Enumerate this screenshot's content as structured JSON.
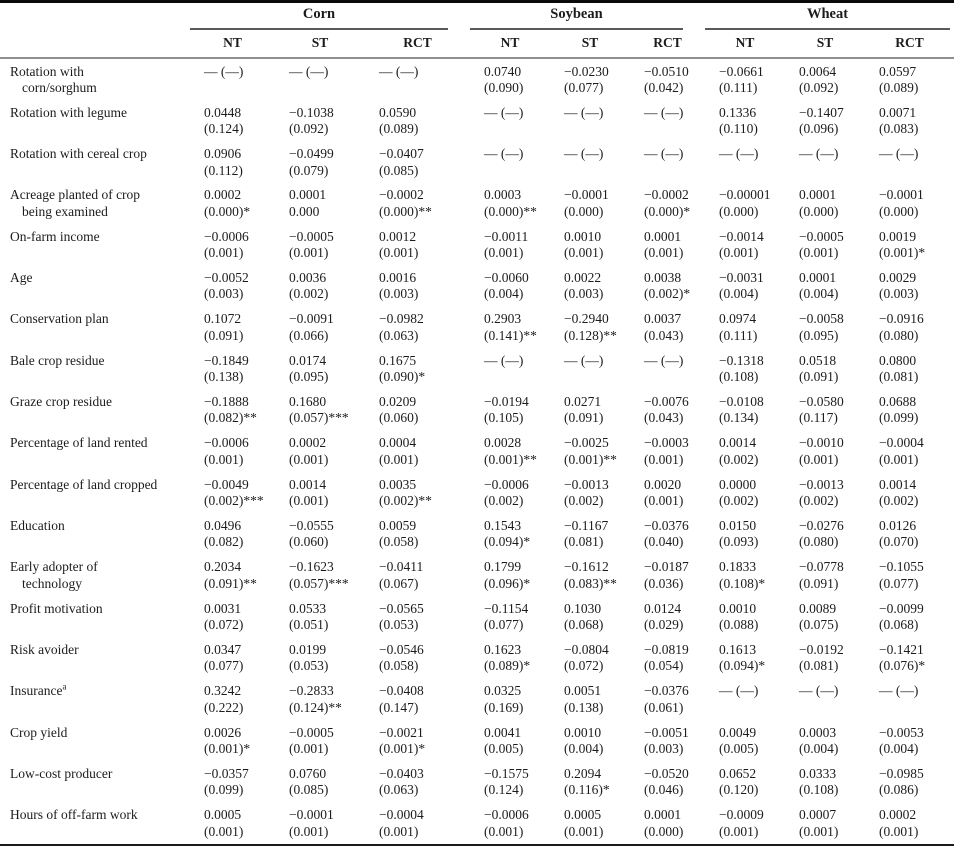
{
  "table": {
    "col_groups": [
      {
        "label": "Corn"
      },
      {
        "label": "Soybean"
      },
      {
        "label": "Wheat"
      }
    ],
    "sub_headers": [
      "NT",
      "ST",
      "RCT"
    ],
    "rows": [
      {
        "label": [
          "Rotation with",
          "corn/sorghum"
        ],
        "cells": [
          [
            "— (—)",
            ""
          ],
          [
            "— (—)",
            ""
          ],
          [
            "— (—)",
            ""
          ],
          [
            "0.0740",
            "(0.090)"
          ],
          [
            "−0.0230",
            "(0.077)"
          ],
          [
            "−0.0510",
            "(0.042)"
          ],
          [
            "−0.0661",
            "(0.111)"
          ],
          [
            "0.0064",
            "(0.092)"
          ],
          [
            "0.0597",
            "(0.089)"
          ]
        ]
      },
      {
        "label": [
          "Rotation with legume"
        ],
        "cells": [
          [
            "0.0448",
            "(0.124)"
          ],
          [
            "−0.1038",
            "(0.092)"
          ],
          [
            "0.0590",
            "(0.089)"
          ],
          [
            "— (—)",
            ""
          ],
          [
            "— (—)",
            ""
          ],
          [
            "— (—)",
            ""
          ],
          [
            "0.1336",
            "(0.110)"
          ],
          [
            "−0.1407",
            "(0.096)"
          ],
          [
            "0.0071",
            "(0.083)"
          ]
        ]
      },
      {
        "label": [
          "Rotation with cereal crop"
        ],
        "cells": [
          [
            "0.0906",
            "(0.112)"
          ],
          [
            "−0.0499",
            "(0.079)"
          ],
          [
            "−0.0407",
            "(0.085)"
          ],
          [
            "— (—)",
            ""
          ],
          [
            "— (—)",
            ""
          ],
          [
            "— (—)",
            ""
          ],
          [
            "— (—)",
            ""
          ],
          [
            "— (—)",
            ""
          ],
          [
            "— (—)",
            ""
          ]
        ]
      },
      {
        "label": [
          "Acreage planted of crop",
          "being examined"
        ],
        "cells": [
          [
            "0.0002",
            "(0.000)*"
          ],
          [
            "0.0001",
            "0.000"
          ],
          [
            "−0.0002",
            "(0.000)**"
          ],
          [
            "0.0003",
            "(0.000)**"
          ],
          [
            "−0.0001",
            "(0.000)"
          ],
          [
            "−0.0002",
            "(0.000)*"
          ],
          [
            "−0.00001",
            "(0.000)"
          ],
          [
            "0.0001",
            "(0.000)"
          ],
          [
            "−0.0001",
            "(0.000)"
          ]
        ]
      },
      {
        "label": [
          "On-farm income"
        ],
        "cells": [
          [
            "−0.0006",
            "(0.001)"
          ],
          [
            "−0.0005",
            "(0.001)"
          ],
          [
            "0.0012",
            "(0.001)"
          ],
          [
            "−0.0011",
            "(0.001)"
          ],
          [
            "0.0010",
            "(0.001)"
          ],
          [
            "0.0001",
            "(0.001)"
          ],
          [
            "−0.0014",
            "(0.001)"
          ],
          [
            "−0.0005",
            "(0.001)"
          ],
          [
            "0.0019",
            "(0.001)*"
          ]
        ]
      },
      {
        "label": [
          "Age"
        ],
        "cells": [
          [
            "−0.0052",
            "(0.003)"
          ],
          [
            "0.0036",
            "(0.002)"
          ],
          [
            "0.0016",
            "(0.003)"
          ],
          [
            "−0.0060",
            "(0.004)"
          ],
          [
            "0.0022",
            "(0.003)"
          ],
          [
            "0.0038",
            "(0.002)*"
          ],
          [
            "−0.0031",
            "(0.004)"
          ],
          [
            "0.0001",
            "(0.004)"
          ],
          [
            "0.0029",
            "(0.003)"
          ]
        ]
      },
      {
        "label": [
          "Conservation plan"
        ],
        "cells": [
          [
            "0.1072",
            "(0.091)"
          ],
          [
            "−0.0091",
            "(0.066)"
          ],
          [
            "−0.0982",
            "(0.063)"
          ],
          [
            "0.2903",
            "(0.141)**"
          ],
          [
            "−0.2940",
            "(0.128)**"
          ],
          [
            "0.0037",
            "(0.043)"
          ],
          [
            "0.0974",
            "(0.111)"
          ],
          [
            "−0.0058",
            "(0.095)"
          ],
          [
            "−0.0916",
            "(0.080)"
          ]
        ]
      },
      {
        "label": [
          "Bale crop residue"
        ],
        "cells": [
          [
            "−0.1849",
            "(0.138)"
          ],
          [
            "0.0174",
            "(0.095)"
          ],
          [
            "0.1675",
            "(0.090)*"
          ],
          [
            "— (—)",
            ""
          ],
          [
            "— (—)",
            ""
          ],
          [
            "— (—)",
            ""
          ],
          [
            "−0.1318",
            "(0.108)"
          ],
          [
            "0.0518",
            "(0.091)"
          ],
          [
            "0.0800",
            "(0.081)"
          ]
        ]
      },
      {
        "label": [
          "Graze crop residue"
        ],
        "cells": [
          [
            "−0.1888",
            "(0.082)**"
          ],
          [
            "0.1680",
            "(0.057)***"
          ],
          [
            "0.0209",
            "(0.060)"
          ],
          [
            "−0.0194",
            "(0.105)"
          ],
          [
            "0.0271",
            "(0.091)"
          ],
          [
            "−0.0076",
            "(0.043)"
          ],
          [
            "−0.0108",
            "(0.134)"
          ],
          [
            "−0.0580",
            "(0.117)"
          ],
          [
            "0.0688",
            "(0.099)"
          ]
        ]
      },
      {
        "label": [
          "Percentage of land rented"
        ],
        "cells": [
          [
            "−0.0006",
            "(0.001)"
          ],
          [
            "0.0002",
            "(0.001)"
          ],
          [
            "0.0004",
            "(0.001)"
          ],
          [
            "0.0028",
            "(0.001)**"
          ],
          [
            "−0.0025",
            "(0.001)**"
          ],
          [
            "−0.0003",
            "(0.001)"
          ],
          [
            "0.0014",
            "(0.002)"
          ],
          [
            "−0.0010",
            "(0.001)"
          ],
          [
            "−0.0004",
            "(0.001)"
          ]
        ]
      },
      {
        "label": [
          "Percentage of land cropped"
        ],
        "cells": [
          [
            "−0.0049",
            "(0.002)***"
          ],
          [
            "0.0014",
            "(0.001)"
          ],
          [
            "0.0035",
            "(0.002)**"
          ],
          [
            "−0.0006",
            "(0.002)"
          ],
          [
            "−0.0013",
            "(0.002)"
          ],
          [
            "0.0020",
            "(0.001)"
          ],
          [
            "0.0000",
            "(0.002)"
          ],
          [
            "−0.0013",
            "(0.002)"
          ],
          [
            "0.0014",
            "(0.002)"
          ]
        ]
      },
      {
        "label": [
          "Education"
        ],
        "cells": [
          [
            "0.0496",
            "(0.082)"
          ],
          [
            "−0.0555",
            "(0.060)"
          ],
          [
            "0.0059",
            "(0.058)"
          ],
          [
            "0.1543",
            "(0.094)*"
          ],
          [
            "−0.1167",
            "(0.081)"
          ],
          [
            "−0.0376",
            "(0.040)"
          ],
          [
            "0.0150",
            "(0.093)"
          ],
          [
            "−0.0276",
            "(0.080)"
          ],
          [
            "0.0126",
            "(0.070)"
          ]
        ]
      },
      {
        "label": [
          "Early adopter of",
          "technology"
        ],
        "cells": [
          [
            "0.2034",
            "(0.091)**"
          ],
          [
            "−0.1623",
            "(0.057)***"
          ],
          [
            "−0.0411",
            "(0.067)"
          ],
          [
            "0.1799",
            "(0.096)*"
          ],
          [
            "−0.1612",
            "(0.083)**"
          ],
          [
            "−0.0187",
            "(0.036)"
          ],
          [
            "0.1833",
            "(0.108)*"
          ],
          [
            "−0.0778",
            "(0.091)"
          ],
          [
            "−0.1055",
            "(0.077)"
          ]
        ]
      },
      {
        "label": [
          "Profit motivation"
        ],
        "cells": [
          [
            "0.0031",
            "(0.072)"
          ],
          [
            "0.0533",
            "(0.051)"
          ],
          [
            "−0.0565",
            "(0.053)"
          ],
          [
            "−0.1154",
            "(0.077)"
          ],
          [
            "0.1030",
            "(0.068)"
          ],
          [
            "0.0124",
            "(0.029)"
          ],
          [
            "0.0010",
            "(0.088)"
          ],
          [
            "0.0089",
            "(0.075)"
          ],
          [
            "−0.0099",
            "(0.068)"
          ]
        ]
      },
      {
        "label": [
          "Risk avoider"
        ],
        "cells": [
          [
            "0.0347",
            "(0.077)"
          ],
          [
            "0.0199",
            "(0.053)"
          ],
          [
            "−0.0546",
            "(0.058)"
          ],
          [
            "0.1623",
            "(0.089)*"
          ],
          [
            "−0.0804",
            "(0.072)"
          ],
          [
            "−0.0819",
            "(0.054)"
          ],
          [
            "0.1613",
            "(0.094)*"
          ],
          [
            "−0.0192",
            "(0.081)"
          ],
          [
            "−0.1421",
            "(0.076)*"
          ]
        ]
      },
      {
        "label": [
          "Insurance"
        ],
        "label_superscript": "a",
        "cells": [
          [
            "0.3242",
            "(0.222)"
          ],
          [
            "−0.2833",
            "(0.124)**"
          ],
          [
            "−0.0408",
            "(0.147)"
          ],
          [
            "0.0325",
            "(0.169)"
          ],
          [
            "0.0051",
            "(0.138)"
          ],
          [
            "−0.0376",
            "(0.061)"
          ],
          [
            "— (—)",
            ""
          ],
          [
            "— (—)",
            ""
          ],
          [
            "— (—)",
            ""
          ]
        ]
      },
      {
        "label": [
          "Crop yield"
        ],
        "cells": [
          [
            "0.0026",
            "(0.001)*"
          ],
          [
            "−0.0005",
            "(0.001)"
          ],
          [
            "−0.0021",
            "(0.001)*"
          ],
          [
            "0.0041",
            "(0.005)"
          ],
          [
            "0.0010",
            "(0.004)"
          ],
          [
            "−0.0051",
            "(0.003)"
          ],
          [
            "0.0049",
            "(0.005)"
          ],
          [
            "0.0003",
            "(0.004)"
          ],
          [
            "−0.0053",
            "(0.004)"
          ]
        ]
      },
      {
        "label": [
          "Low-cost producer"
        ],
        "cells": [
          [
            "−0.0357",
            "(0.099)"
          ],
          [
            "0.0760",
            "(0.085)"
          ],
          [
            "−0.0403",
            "(0.063)"
          ],
          [
            "−0.1575",
            "(0.124)"
          ],
          [
            "0.2094",
            "(0.116)*"
          ],
          [
            "−0.0520",
            "(0.046)"
          ],
          [
            "0.0652",
            "(0.120)"
          ],
          [
            "0.0333",
            "(0.108)"
          ],
          [
            "−0.0985",
            "(0.086)"
          ]
        ]
      },
      {
        "label": [
          "Hours of off-farm work"
        ],
        "cells": [
          [
            "0.0005",
            "(0.001)"
          ],
          [
            "−0.0001",
            "(0.001)"
          ],
          [
            "−0.0004",
            "(0.001)"
          ],
          [
            "−0.0006",
            "(0.001)"
          ],
          [
            "0.0005",
            "(0.001)"
          ],
          [
            "0.0001",
            "(0.000)"
          ],
          [
            "−0.0009",
            "(0.001)"
          ],
          [
            "0.0007",
            "(0.001)"
          ],
          [
            "0.0002",
            "(0.001)"
          ]
        ]
      }
    ]
  }
}
